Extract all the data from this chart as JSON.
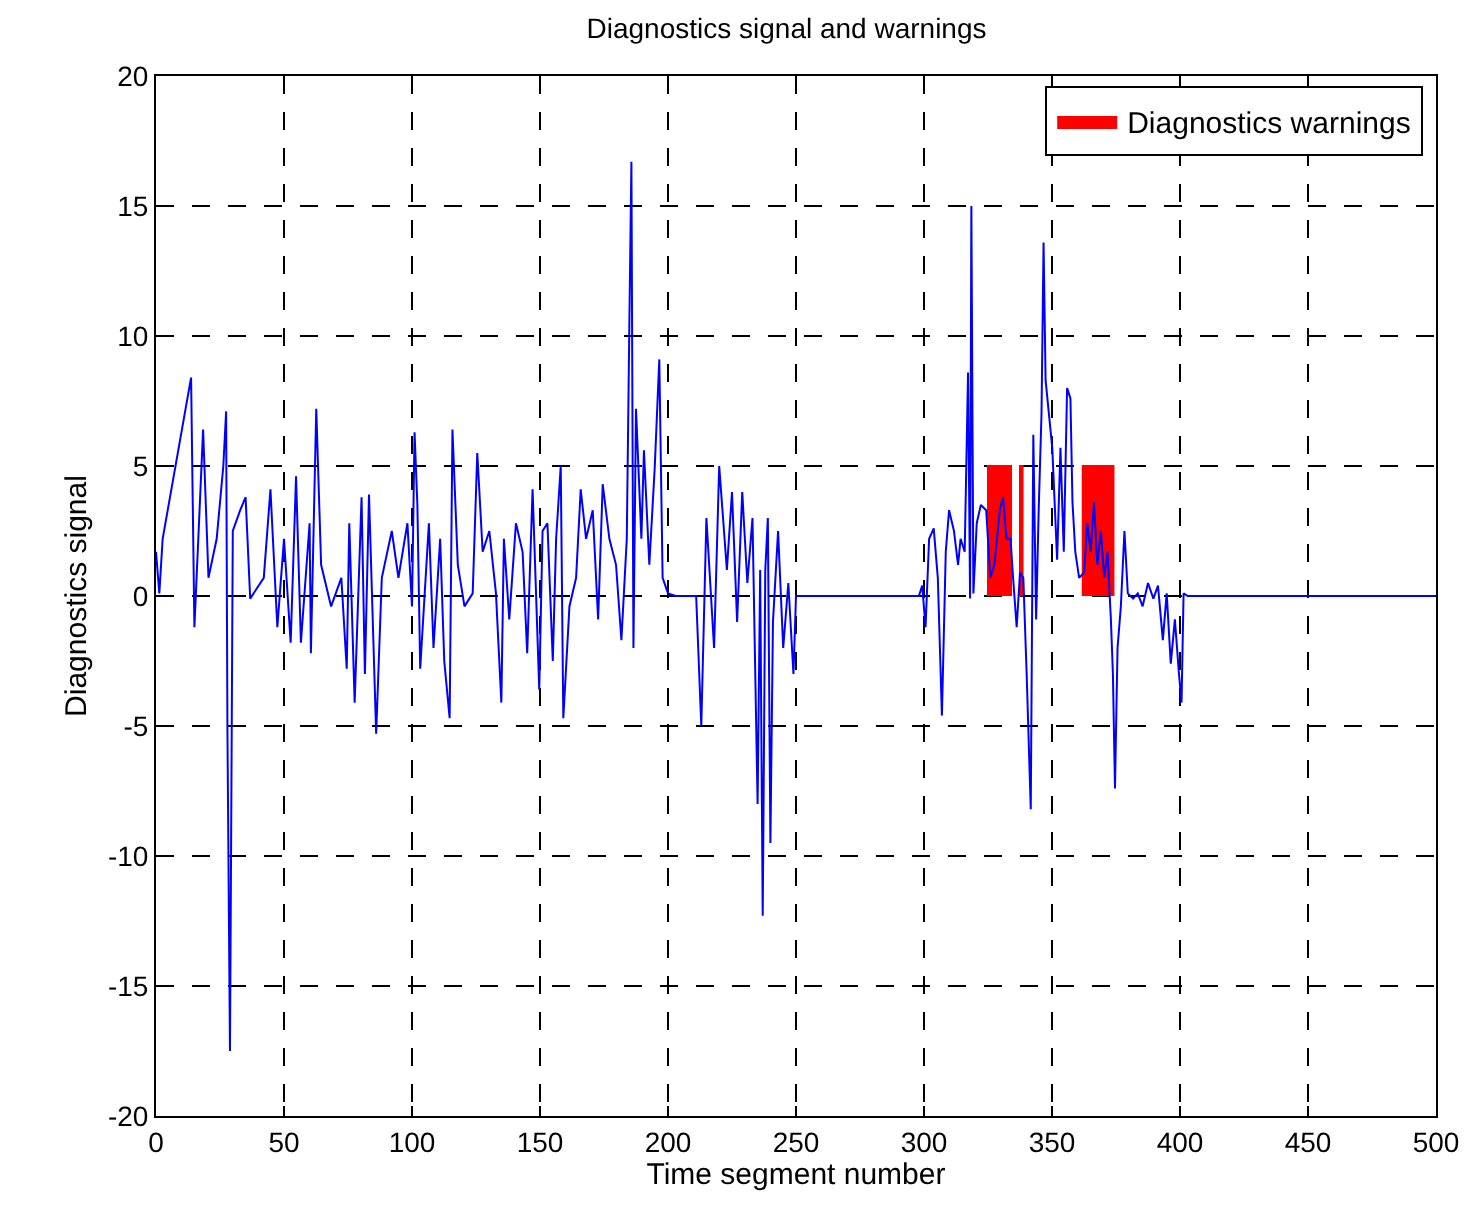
{
  "chart_data": {
    "type": "line",
    "title": "Diagnostics signal and warnings",
    "xlabel": "Time segment number",
    "ylabel": "Diagnostics signal",
    "xlim": [
      0,
      500
    ],
    "ylim": [
      -20,
      20
    ],
    "xticks": [
      0,
      50,
      100,
      150,
      200,
      250,
      300,
      350,
      400,
      450,
      500
    ],
    "yticks": [
      -20,
      -15,
      -10,
      -5,
      0,
      5,
      10,
      15,
      20
    ],
    "grid": true,
    "legend": "top right",
    "marker": "none",
    "series": [
      {
        "color": "#0000ff",
        "x": [
          0,
          1.3,
          2.6,
          13.7,
          15,
          18.4,
          20.5,
          23.7,
          26.3,
          27.4,
          27.9,
          28.9,
          30,
          32.9,
          35,
          36.8,
          42.1,
          44.7,
          47.4,
          50,
          52.6,
          54.7,
          56.6,
          60,
          60.5,
          62.6,
          64.5,
          68.4,
          72.4,
          74.5,
          75.5,
          77.6,
          80.3,
          81.6,
          83.2,
          86,
          88.2,
          92.1,
          94.7,
          98.2,
          100,
          101,
          102.1,
          103.2,
          106.6,
          108.4,
          111,
          112.6,
          114.7,
          115.8,
          117.9,
          120.5,
          123.7,
          125.5,
          127.6,
          130.2,
          132.8,
          134.9,
          135.9,
          138,
          140.6,
          143.2,
          145,
          147.1,
          149.7,
          151,
          152.9,
          155,
          156.3,
          158.1,
          159.1,
          161.5,
          164.1,
          165.9,
          168,
          170.6,
          172.7,
          174.5,
          177.1,
          179.7,
          181.8,
          183.9,
          184.9,
          185.7,
          186.5,
          187.5,
          189.6,
          190.6,
          192.7,
          194.8,
          196.6,
          197.9,
          200,
          203,
          211,
          213,
          215,
          218,
          220,
          223,
          225,
          227,
          229,
          231,
          233,
          235,
          236,
          237,
          238,
          239,
          240,
          241,
          243,
          245,
          247,
          249,
          250,
          298,
          299.3,
          300.6,
          302,
          303.8,
          305.4,
          307,
          308.5,
          309.8,
          311.7,
          313.3,
          314.3,
          315.9,
          317.2,
          318,
          318.5,
          319.3,
          320.6,
          322.2,
          324.3,
          325.9,
          327.5,
          329.6,
          330.9,
          332.2,
          333.8,
          334.8,
          336.2,
          337.5,
          338.8,
          340.1,
          341.7,
          342.7,
          343.8,
          344.8,
          345.9,
          346.7,
          347.5,
          350.1,
          352,
          353.3,
          354.6,
          355.9,
          357.2,
          358,
          359.1,
          360.6,
          362.5,
          363.8,
          365.1,
          366.4,
          367.7,
          369.1,
          370.4,
          371.7,
          373,
          373.8,
          374.6,
          375.6,
          376.9,
          378.3,
          379.6,
          381.7,
          383.5,
          385.4,
          387.5,
          389.6,
          391.4,
          393.3,
          394.8,
          396.4,
          398,
          399.6,
          400.6,
          401.4,
          403,
          500
        ],
        "values": [
          1.7,
          0.1,
          2.2,
          8.4,
          -1.2,
          6.4,
          0.7,
          2.2,
          5.0,
          7.1,
          -5.1,
          -17.5,
          2.5,
          3.3,
          3.8,
          -0.1,
          0.7,
          4.1,
          -1.2,
          2.2,
          -1.8,
          4.6,
          -1.8,
          2.8,
          -2.2,
          7.2,
          1.2,
          -0.4,
          0.7,
          -2.8,
          2.8,
          -4.1,
          3.8,
          -3.0,
          3.9,
          -5.3,
          0.7,
          2.5,
          0.7,
          2.8,
          -0.4,
          6.3,
          3.5,
          -2.8,
          2.8,
          -2.0,
          2.2,
          -2.5,
          -4.7,
          6.4,
          1.2,
          -0.4,
          0.1,
          5.5,
          1.7,
          2.5,
          0.1,
          -4.1,
          2.2,
          -0.9,
          2.8,
          1.7,
          -2.2,
          4.1,
          -3.6,
          2.5,
          2.8,
          -2.5,
          2.2,
          5.0,
          -4.7,
          -0.4,
          0.7,
          4.1,
          2.2,
          3.3,
          -0.9,
          4.3,
          2.2,
          1.2,
          -1.7,
          2.2,
          10.4,
          16.7,
          -2.0,
          7.2,
          2.2,
          5.6,
          1.2,
          4.9,
          9.1,
          0.7,
          0.1,
          0,
          0,
          -5,
          3,
          -2,
          5,
          1,
          4,
          -1,
          4,
          0.5,
          3,
          -8,
          1,
          -12.3,
          1,
          3,
          -9.5,
          -1,
          2.5,
          -2,
          0.5,
          -3,
          0,
          0,
          0.4,
          -1.2,
          2.2,
          2.6,
          0.7,
          -4.6,
          1.7,
          3.3,
          2.5,
          1.2,
          2.2,
          1.7,
          8.6,
          -0.1,
          15.0,
          0.1,
          2.8,
          3.5,
          3.3,
          0.7,
          1.2,
          3.3,
          3.8,
          2.2,
          2.2,
          0.7,
          -1.2,
          0.9,
          0.7,
          -3.0,
          -8.2,
          6.2,
          -0.9,
          3.3,
          7.0,
          13.6,
          8.3,
          5.7,
          1.4,
          5.7,
          1.7,
          8.0,
          7.6,
          3.6,
          1.7,
          0.7,
          0.9,
          2.8,
          1.7,
          3.6,
          1.2,
          2.5,
          0.7,
          1.7,
          -0.9,
          -3.0,
          -7.4,
          -2.0,
          -0.4,
          2.5,
          0.1,
          -0.1,
          0.1,
          -0.4,
          0.5,
          -0.1,
          0.4,
          -1.7,
          0.1,
          -2.6,
          -0.9,
          -3.0,
          -4.1,
          0.1,
          0,
          0
        ]
      },
      {
        "name": "Diagnostics warnings",
        "color": "#ff0000",
        "type": "area",
        "x": [
          325,
          325,
          334,
          334,
          336,
          337.5,
          337.5,
          338.5,
          338.5,
          339,
          362,
          362,
          374,
          374
        ],
        "values": [
          0,
          5,
          5,
          0,
          null,
          0,
          5,
          5,
          0,
          null,
          0,
          5,
          5,
          0
        ]
      }
    ]
  }
}
